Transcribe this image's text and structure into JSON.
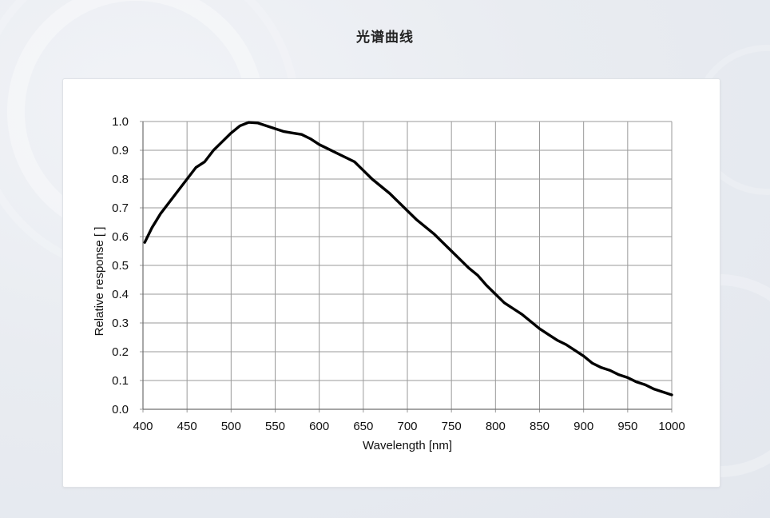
{
  "page": {
    "title": "光谱曲线"
  },
  "chart_data": {
    "type": "line",
    "title": "",
    "xlabel": "Wavelength [nm]",
    "ylabel": "Relative response [ ]",
    "xlim": [
      400,
      1000
    ],
    "ylim": [
      0,
      1.0
    ],
    "grid": true,
    "xticks": [
      "400",
      "450",
      "500",
      "550",
      "600",
      "650",
      "700",
      "750",
      "800",
      "850",
      "900",
      "950",
      "1000"
    ],
    "yticks": [
      "0.0",
      "0.1",
      "0.2",
      "0.3",
      "0.4",
      "0.5",
      "0.6",
      "0.7",
      "0.8",
      "0.9",
      "1.0"
    ],
    "series": [
      {
        "color": "#000000",
        "points": [
          [
            402,
            0.58
          ],
          [
            410,
            0.63
          ],
          [
            420,
            0.68
          ],
          [
            430,
            0.72
          ],
          [
            440,
            0.76
          ],
          [
            450,
            0.8
          ],
          [
            460,
            0.84
          ],
          [
            470,
            0.86
          ],
          [
            480,
            0.9
          ],
          [
            490,
            0.93
          ],
          [
            500,
            0.96
          ],
          [
            510,
            0.985
          ],
          [
            520,
            0.997
          ],
          [
            530,
            0.995
          ],
          [
            540,
            0.985
          ],
          [
            550,
            0.975
          ],
          [
            560,
            0.965
          ],
          [
            570,
            0.96
          ],
          [
            580,
            0.955
          ],
          [
            590,
            0.94
          ],
          [
            600,
            0.92
          ],
          [
            610,
            0.905
          ],
          [
            620,
            0.89
          ],
          [
            630,
            0.875
          ],
          [
            640,
            0.86
          ],
          [
            650,
            0.83
          ],
          [
            660,
            0.8
          ],
          [
            670,
            0.775
          ],
          [
            680,
            0.75
          ],
          [
            690,
            0.72
          ],
          [
            700,
            0.69
          ],
          [
            710,
            0.66
          ],
          [
            720,
            0.635
          ],
          [
            730,
            0.61
          ],
          [
            740,
            0.58
          ],
          [
            750,
            0.55
          ],
          [
            760,
            0.52
          ],
          [
            770,
            0.49
          ],
          [
            780,
            0.465
          ],
          [
            790,
            0.43
          ],
          [
            800,
            0.4
          ],
          [
            810,
            0.37
          ],
          [
            820,
            0.35
          ],
          [
            830,
            0.33
          ],
          [
            840,
            0.305
          ],
          [
            850,
            0.28
          ],
          [
            860,
            0.26
          ],
          [
            870,
            0.24
          ],
          [
            880,
            0.225
          ],
          [
            890,
            0.205
          ],
          [
            900,
            0.185
          ],
          [
            910,
            0.16
          ],
          [
            920,
            0.145
          ],
          [
            930,
            0.135
          ],
          [
            940,
            0.12
          ],
          [
            950,
            0.11
          ],
          [
            960,
            0.095
          ],
          [
            970,
            0.085
          ],
          [
            980,
            0.07
          ],
          [
            990,
            0.06
          ],
          [
            1000,
            0.05
          ]
        ]
      }
    ]
  }
}
